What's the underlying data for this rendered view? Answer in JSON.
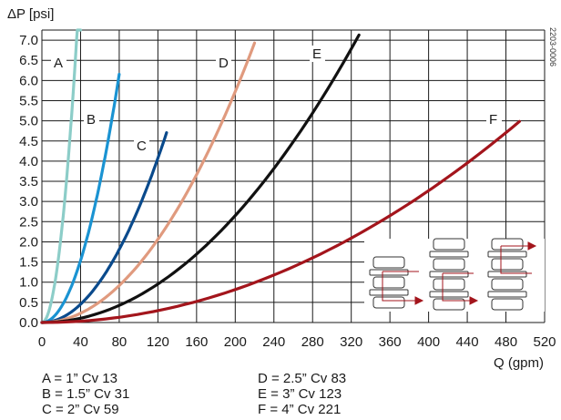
{
  "chart_data": {
    "type": "line",
    "ylabel": "ΔP [psi]",
    "xlabel": "Q (gpm)",
    "xlim": [
      0,
      520
    ],
    "ylim": [
      0,
      7.25
    ],
    "xticks": [
      0,
      40,
      80,
      120,
      160,
      200,
      240,
      280,
      320,
      360,
      400,
      440,
      480,
      520
    ],
    "yticks": [
      "0.0",
      "0.5",
      "1.0",
      "1.5",
      "2.0",
      "2.5",
      "3.0",
      "3.5",
      "4.0",
      "4.5",
      "5.0",
      "5.5",
      "6.0",
      "6.5",
      "7.0"
    ],
    "grid": true,
    "series": [
      {
        "name": "A",
        "color": "#8ccdc8",
        "cv": 13,
        "x": [
          0,
          10,
          20,
          30,
          35,
          40
        ],
        "y": [
          0,
          0.6,
          2.37,
          5.33,
          6.24,
          6.8
        ]
      },
      {
        "name": "B",
        "color": "#1a93d2",
        "cv": 31,
        "x": [
          0,
          20,
          40,
          60,
          75,
          80
        ],
        "y": [
          0,
          0.41,
          1.66,
          3.75,
          4.88,
          5.35
        ]
      },
      {
        "name": "C",
        "color": "#0a4a8c",
        "cv": 59,
        "x": [
          0,
          40,
          80,
          110,
          126,
          129
        ],
        "y": [
          0,
          0.46,
          1.84,
          3.48,
          4.42,
          4.55
        ]
      },
      {
        "name": "D",
        "color": "#e09a7e",
        "cv": 83,
        "x": [
          0,
          60,
          120,
          180,
          215,
          220
        ],
        "y": [
          0,
          0.52,
          2.09,
          4.7,
          6.5,
          6.8
        ]
      },
      {
        "name": "E",
        "color": "#111111",
        "cv": 123,
        "x": [
          0,
          80,
          160,
          240,
          300,
          328
        ],
        "y": [
          0,
          0.42,
          1.69,
          3.81,
          5.95,
          7.25
        ]
      },
      {
        "name": "F",
        "color": "#a3151c",
        "cv": 221,
        "x": [
          0,
          100,
          200,
          300,
          400,
          494
        ],
        "y": [
          0,
          0.2,
          0.82,
          1.84,
          3.28,
          5.05
        ]
      }
    ],
    "code": "2203-0006",
    "legend": [
      "A = 1” Cv 13",
      "B = 1.5” Cv 31",
      "C = 2” Cv 59",
      "D = 2.5” Cv 83",
      "E = 3” Cv 123",
      "F = 4” Cv 221"
    ]
  }
}
